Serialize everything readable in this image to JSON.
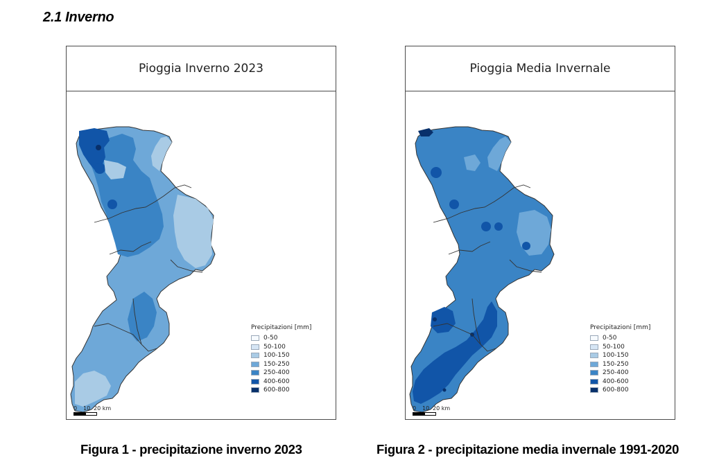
{
  "section_heading": "2.1 Inverno",
  "legend_title": "Precipitazioni [mm]",
  "legend_classes": [
    {
      "label": "0-50",
      "color": "#f7fbff"
    },
    {
      "label": "50-100",
      "color": "#d6e6f5"
    },
    {
      "label": "100-150",
      "color": "#a9cbe5"
    },
    {
      "label": "150-250",
      "color": "#6ea8d8"
    },
    {
      "label": "250-400",
      "color": "#3a84c5"
    },
    {
      "label": "400-600",
      "color": "#1155a8"
    },
    {
      "label": "600-800",
      "color": "#08306b"
    }
  ],
  "scalebar": {
    "labels": [
      "0",
      "10",
      "20 km"
    ]
  },
  "maps": [
    {
      "title": "Pioggia Inverno 2023",
      "caption": "Figura 1 - precipitazione inverno 2023",
      "region_color": "#6ea8d8",
      "zones": [
        {
          "color": "#3a84c5",
          "label": "250-400"
        },
        {
          "color": "#1155a8",
          "label": "400-600"
        },
        {
          "color": "#08306b",
          "label": "600-800"
        },
        {
          "color": "#a9cbe5",
          "label": "100-150"
        }
      ]
    },
    {
      "title": "Pioggia Media Invernale",
      "caption": "Figura 2 - precipitazione media invernale 1991-2020",
      "region_color": "#3a84c5",
      "zones": [
        {
          "color": "#6ea8d8",
          "label": "150-250"
        },
        {
          "color": "#1155a8",
          "label": "400-600"
        },
        {
          "color": "#08306b",
          "label": "600-800"
        }
      ]
    }
  ]
}
